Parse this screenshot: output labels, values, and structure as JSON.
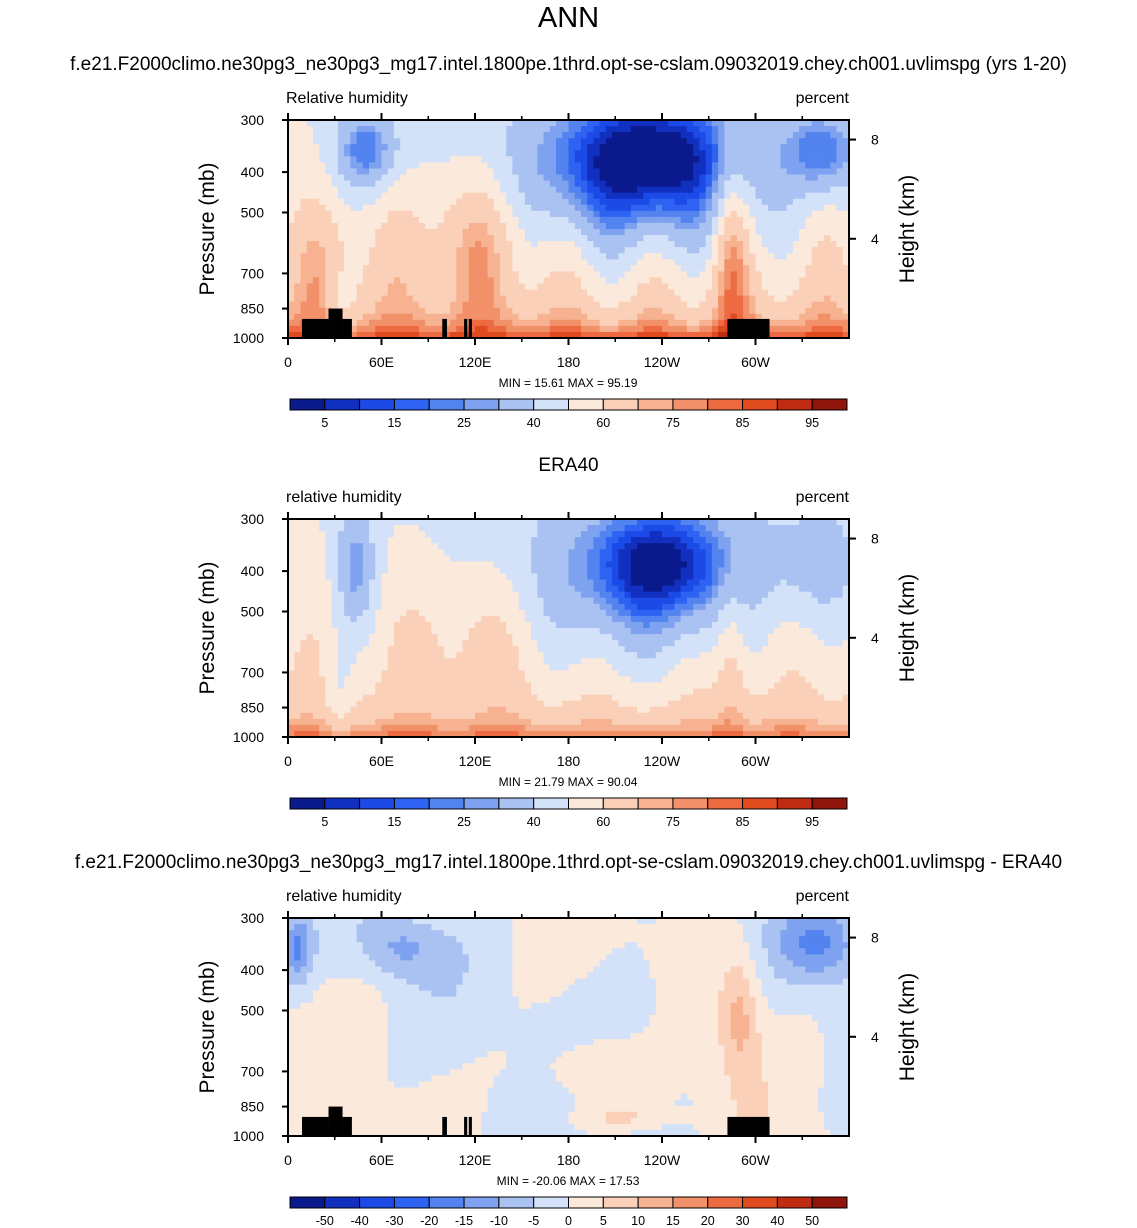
{
  "page": {
    "title": "ANN",
    "test_case_title": "f.e21.F2000climo.ne30pg3_ne30pg3_mg17.intel.1800pe.1thrd.opt-se-cslam.09032019.chey.ch001.uvlimspg (yrs 1-20)",
    "obs_title": "ERA40",
    "diff_title": "f.e21.F2000climo.ne30pg3_ne30pg3_mg17.intel.1800pe.1thrd.opt-se-cslam.09032019.chey.ch001.uvlimspg - ERA40"
  },
  "chart_data": [
    {
      "type": "heatmap",
      "variable_label": "Relative humidity",
      "units_label": "percent",
      "ylabel": "Pressure (mb)",
      "ylabel_right": "Height (km)",
      "xlim_lon": [
        0,
        360
      ],
      "ylim_mb": [
        1000,
        300
      ],
      "xticks": [
        "0",
        "60E",
        "120E",
        "180",
        "120W",
        "60W"
      ],
      "yticks": [
        "300",
        "400",
        "500",
        "700",
        "850",
        "1000"
      ],
      "yticks_right": [
        "8",
        "4"
      ],
      "stats": "MIN = 15.61  MAX = 95.19",
      "colorbar_labels": [
        "5",
        "15",
        "25",
        "40",
        "60",
        "75",
        "85",
        "95"
      ],
      "colorbar_levels": [
        5,
        10,
        15,
        20,
        25,
        30,
        40,
        50,
        60,
        70,
        75,
        80,
        85,
        90,
        95
      ],
      "min": 15.61,
      "max": 95.19
    },
    {
      "type": "heatmap",
      "variable_label": "relative humidity",
      "units_label": "percent",
      "ylabel": "Pressure (mb)",
      "ylabel_right": "Height (km)",
      "xlim_lon": [
        0,
        360
      ],
      "ylim_mb": [
        1000,
        300
      ],
      "xticks": [
        "0",
        "60E",
        "120E",
        "180",
        "120W",
        "60W"
      ],
      "yticks": [
        "300",
        "400",
        "500",
        "700",
        "850",
        "1000"
      ],
      "yticks_right": [
        "8",
        "4"
      ],
      "stats": "MIN = 21.79  MAX = 90.04",
      "colorbar_labels": [
        "5",
        "15",
        "25",
        "40",
        "60",
        "75",
        "85",
        "95"
      ],
      "colorbar_levels": [
        5,
        10,
        15,
        20,
        25,
        30,
        40,
        50,
        60,
        70,
        75,
        80,
        85,
        90,
        95
      ],
      "min": 21.79,
      "max": 90.04
    },
    {
      "type": "heatmap",
      "variable_label": "relative humidity",
      "units_label": "percent",
      "ylabel": "Pressure (mb)",
      "ylabel_right": "Height (km)",
      "xlim_lon": [
        0,
        360
      ],
      "ylim_mb": [
        1000,
        300
      ],
      "xticks": [
        "0",
        "60E",
        "120E",
        "180",
        "120W",
        "60W"
      ],
      "yticks": [
        "300",
        "400",
        "500",
        "700",
        "850",
        "1000"
      ],
      "yticks_right": [
        "8",
        "4"
      ],
      "stats": "MIN = -20.06  MAX = 17.53",
      "colorbar_labels": [
        "-50",
        "-40",
        "-30",
        "-20",
        "-15",
        "-10",
        "-5",
        "0",
        "5",
        "10",
        "15",
        "20",
        "30",
        "40",
        "50"
      ],
      "colorbar_levels": [
        -50,
        -40,
        -30,
        -20,
        -15,
        -10,
        -5,
        0,
        5,
        10,
        15,
        20,
        30,
        40,
        50
      ],
      "min": -20.06,
      "max": 17.53
    }
  ],
  "colors": {
    "palette": [
      "#0a1a8c",
      "#1230c0",
      "#1c4ae6",
      "#2e62f2",
      "#5383ef",
      "#7ea2ef",
      "#a9c2f2",
      "#d3e2f8",
      "#fbe9dc",
      "#fbd0b8",
      "#f7b291",
      "#f29169",
      "#ee6b42",
      "#df4a1f",
      "#bf2c12",
      "#8f140a"
    ],
    "terrain": "#000000"
  }
}
